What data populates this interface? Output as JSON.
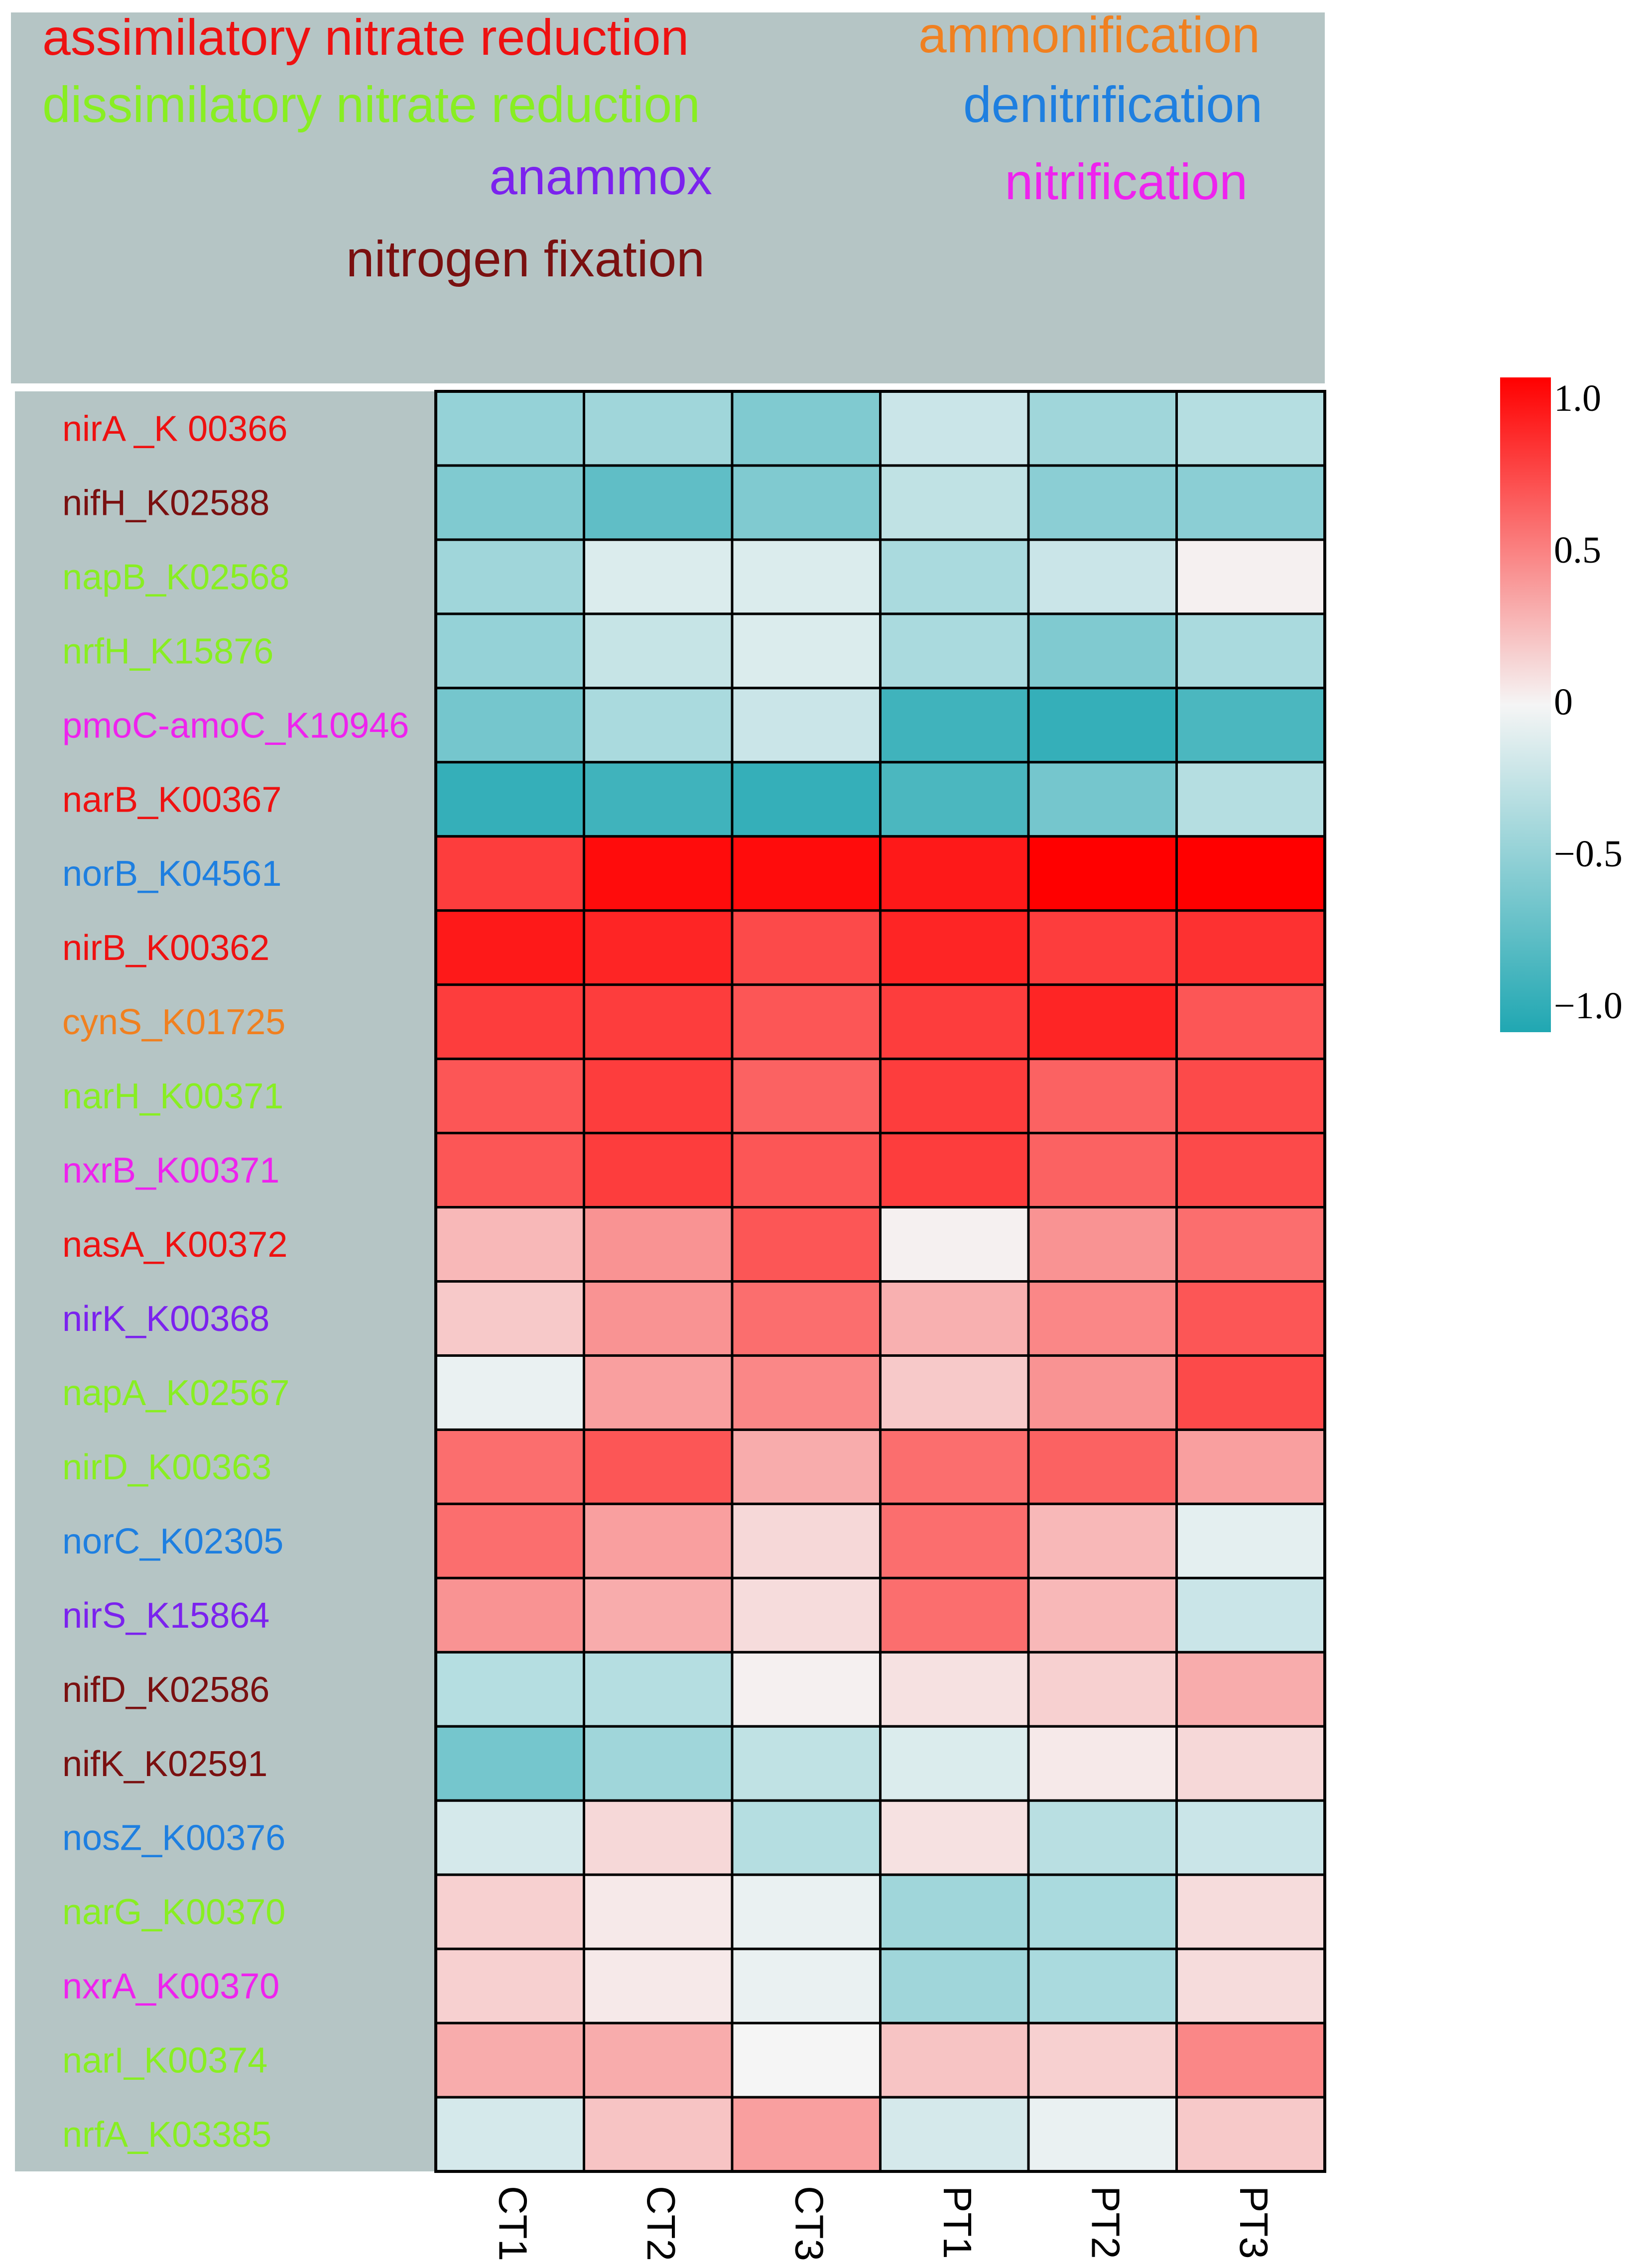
{
  "chart_data": {
    "type": "heatmap",
    "title": "",
    "columns": [
      "CT1",
      "CT2",
      "CT3",
      "PT1",
      "PT2",
      "PT3"
    ],
    "pathway_legend": [
      {
        "label": "assimilatory nitrate reduction",
        "color": "#ee1111"
      },
      {
        "label": "ammonification",
        "color": "#f08020"
      },
      {
        "label": "dissimilatory nitrate reduction",
        "color": "#88ee22"
      },
      {
        "label": "denitrification",
        "color": "#1e7fe0"
      },
      {
        "label": "anammox",
        "color": "#7b22ee"
      },
      {
        "label": "nitrification",
        "color": "#ee22ee"
      },
      {
        "label": "nitrogen fixation",
        "color": "#7a1010"
      }
    ],
    "rows": [
      {
        "label": "nirA _K 00366",
        "pathway": 0,
        "values": [
          -0.45,
          -0.4,
          -0.55,
          -0.2,
          -0.4,
          -0.3
        ]
      },
      {
        "label": "nifH_K02588",
        "pathway": 6,
        "values": [
          -0.55,
          -0.7,
          -0.55,
          -0.25,
          -0.5,
          -0.5
        ]
      },
      {
        "label": "napB_K02568",
        "pathway": 2,
        "values": [
          -0.4,
          -0.12,
          -0.12,
          -0.35,
          -0.2,
          0.02
        ]
      },
      {
        "label": "nrfH_K15876",
        "pathway": 2,
        "values": [
          -0.45,
          -0.22,
          -0.12,
          -0.35,
          -0.55,
          -0.35
        ]
      },
      {
        "label": "pmoC-amoC_K10946",
        "pathway": 5,
        "values": [
          -0.6,
          -0.35,
          -0.2,
          -0.85,
          -0.9,
          -0.8
        ]
      },
      {
        "label": "narB_K00367",
        "pathway": 0,
        "values": [
          -0.9,
          -0.85,
          -0.9,
          -0.8,
          -0.6,
          -0.3
        ]
      },
      {
        "label": "norB_K04561",
        "pathway": 3,
        "values": [
          0.75,
          0.95,
          0.95,
          0.9,
          1.0,
          1.0
        ]
      },
      {
        "label": "nirB_K00362",
        "pathway": 0,
        "values": [
          0.9,
          0.85,
          0.7,
          0.85,
          0.75,
          0.8
        ]
      },
      {
        "label": "cynS_K01725",
        "pathway": 1,
        "values": [
          0.75,
          0.75,
          0.65,
          0.75,
          0.85,
          0.65
        ]
      },
      {
        "label": "narH_K00371",
        "pathway": 2,
        "values": [
          0.65,
          0.75,
          0.6,
          0.75,
          0.6,
          0.7
        ]
      },
      {
        "label": "nxrB_K00371",
        "pathway": 5,
        "values": [
          0.65,
          0.75,
          0.65,
          0.75,
          0.6,
          0.7
        ]
      },
      {
        "label": "nasA_K00372",
        "pathway": 0,
        "values": [
          0.25,
          0.4,
          0.65,
          0.02,
          0.4,
          0.55
        ]
      },
      {
        "label": "nirK_K00368",
        "pathway": 4,
        "values": [
          0.18,
          0.4,
          0.55,
          0.28,
          0.45,
          0.65
        ]
      },
      {
        "label": "napA_K02567",
        "pathway": 2,
        "values": [
          -0.05,
          0.35,
          0.45,
          0.18,
          0.4,
          0.7
        ]
      },
      {
        "label": "nirD_K00363",
        "pathway": 2,
        "values": [
          0.55,
          0.65,
          0.3,
          0.55,
          0.6,
          0.35
        ]
      },
      {
        "label": "norC_K02305",
        "pathway": 3,
        "values": [
          0.55,
          0.35,
          0.12,
          0.55,
          0.25,
          -0.08
        ]
      },
      {
        "label": "nirS_K15864",
        "pathway": 4,
        "values": [
          0.4,
          0.3,
          0.1,
          0.55,
          0.25,
          -0.2
        ]
      },
      {
        "label": "nifD_K02586",
        "pathway": 6,
        "values": [
          -0.3,
          -0.3,
          0.02,
          0.08,
          0.15,
          0.3
        ]
      },
      {
        "label": "nifK_K02591",
        "pathway": 6,
        "values": [
          -0.6,
          -0.4,
          -0.25,
          -0.12,
          0.05,
          0.12
        ]
      },
      {
        "label": "nosZ_K00376",
        "pathway": 3,
        "values": [
          -0.15,
          0.12,
          -0.3,
          0.08,
          -0.28,
          -0.2
        ]
      },
      {
        "label": "narG_K00370",
        "pathway": 2,
        "values": [
          0.15,
          0.05,
          -0.05,
          -0.4,
          -0.35,
          0.1
        ]
      },
      {
        "label": "nxrA_K00370",
        "pathway": 5,
        "values": [
          0.15,
          0.05,
          -0.05,
          -0.4,
          -0.35,
          0.1
        ]
      },
      {
        "label": "narI_K00374",
        "pathway": 2,
        "values": [
          0.3,
          0.3,
          0.0,
          0.2,
          0.15,
          0.45
        ]
      },
      {
        "label": "nrfA_K03385",
        "pathway": 2,
        "values": [
          -0.15,
          0.2,
          0.35,
          -0.15,
          -0.05,
          0.18
        ]
      }
    ],
    "colorbar": {
      "min": -1.0,
      "max": 1.0,
      "ticks": [
        "1.0",
        "0.5",
        "0",
        "−0.5",
        "−1.0"
      ],
      "low_color": "#20a7b2",
      "mid_color": "#f5f5f5",
      "high_color": "#ff0000"
    }
  }
}
